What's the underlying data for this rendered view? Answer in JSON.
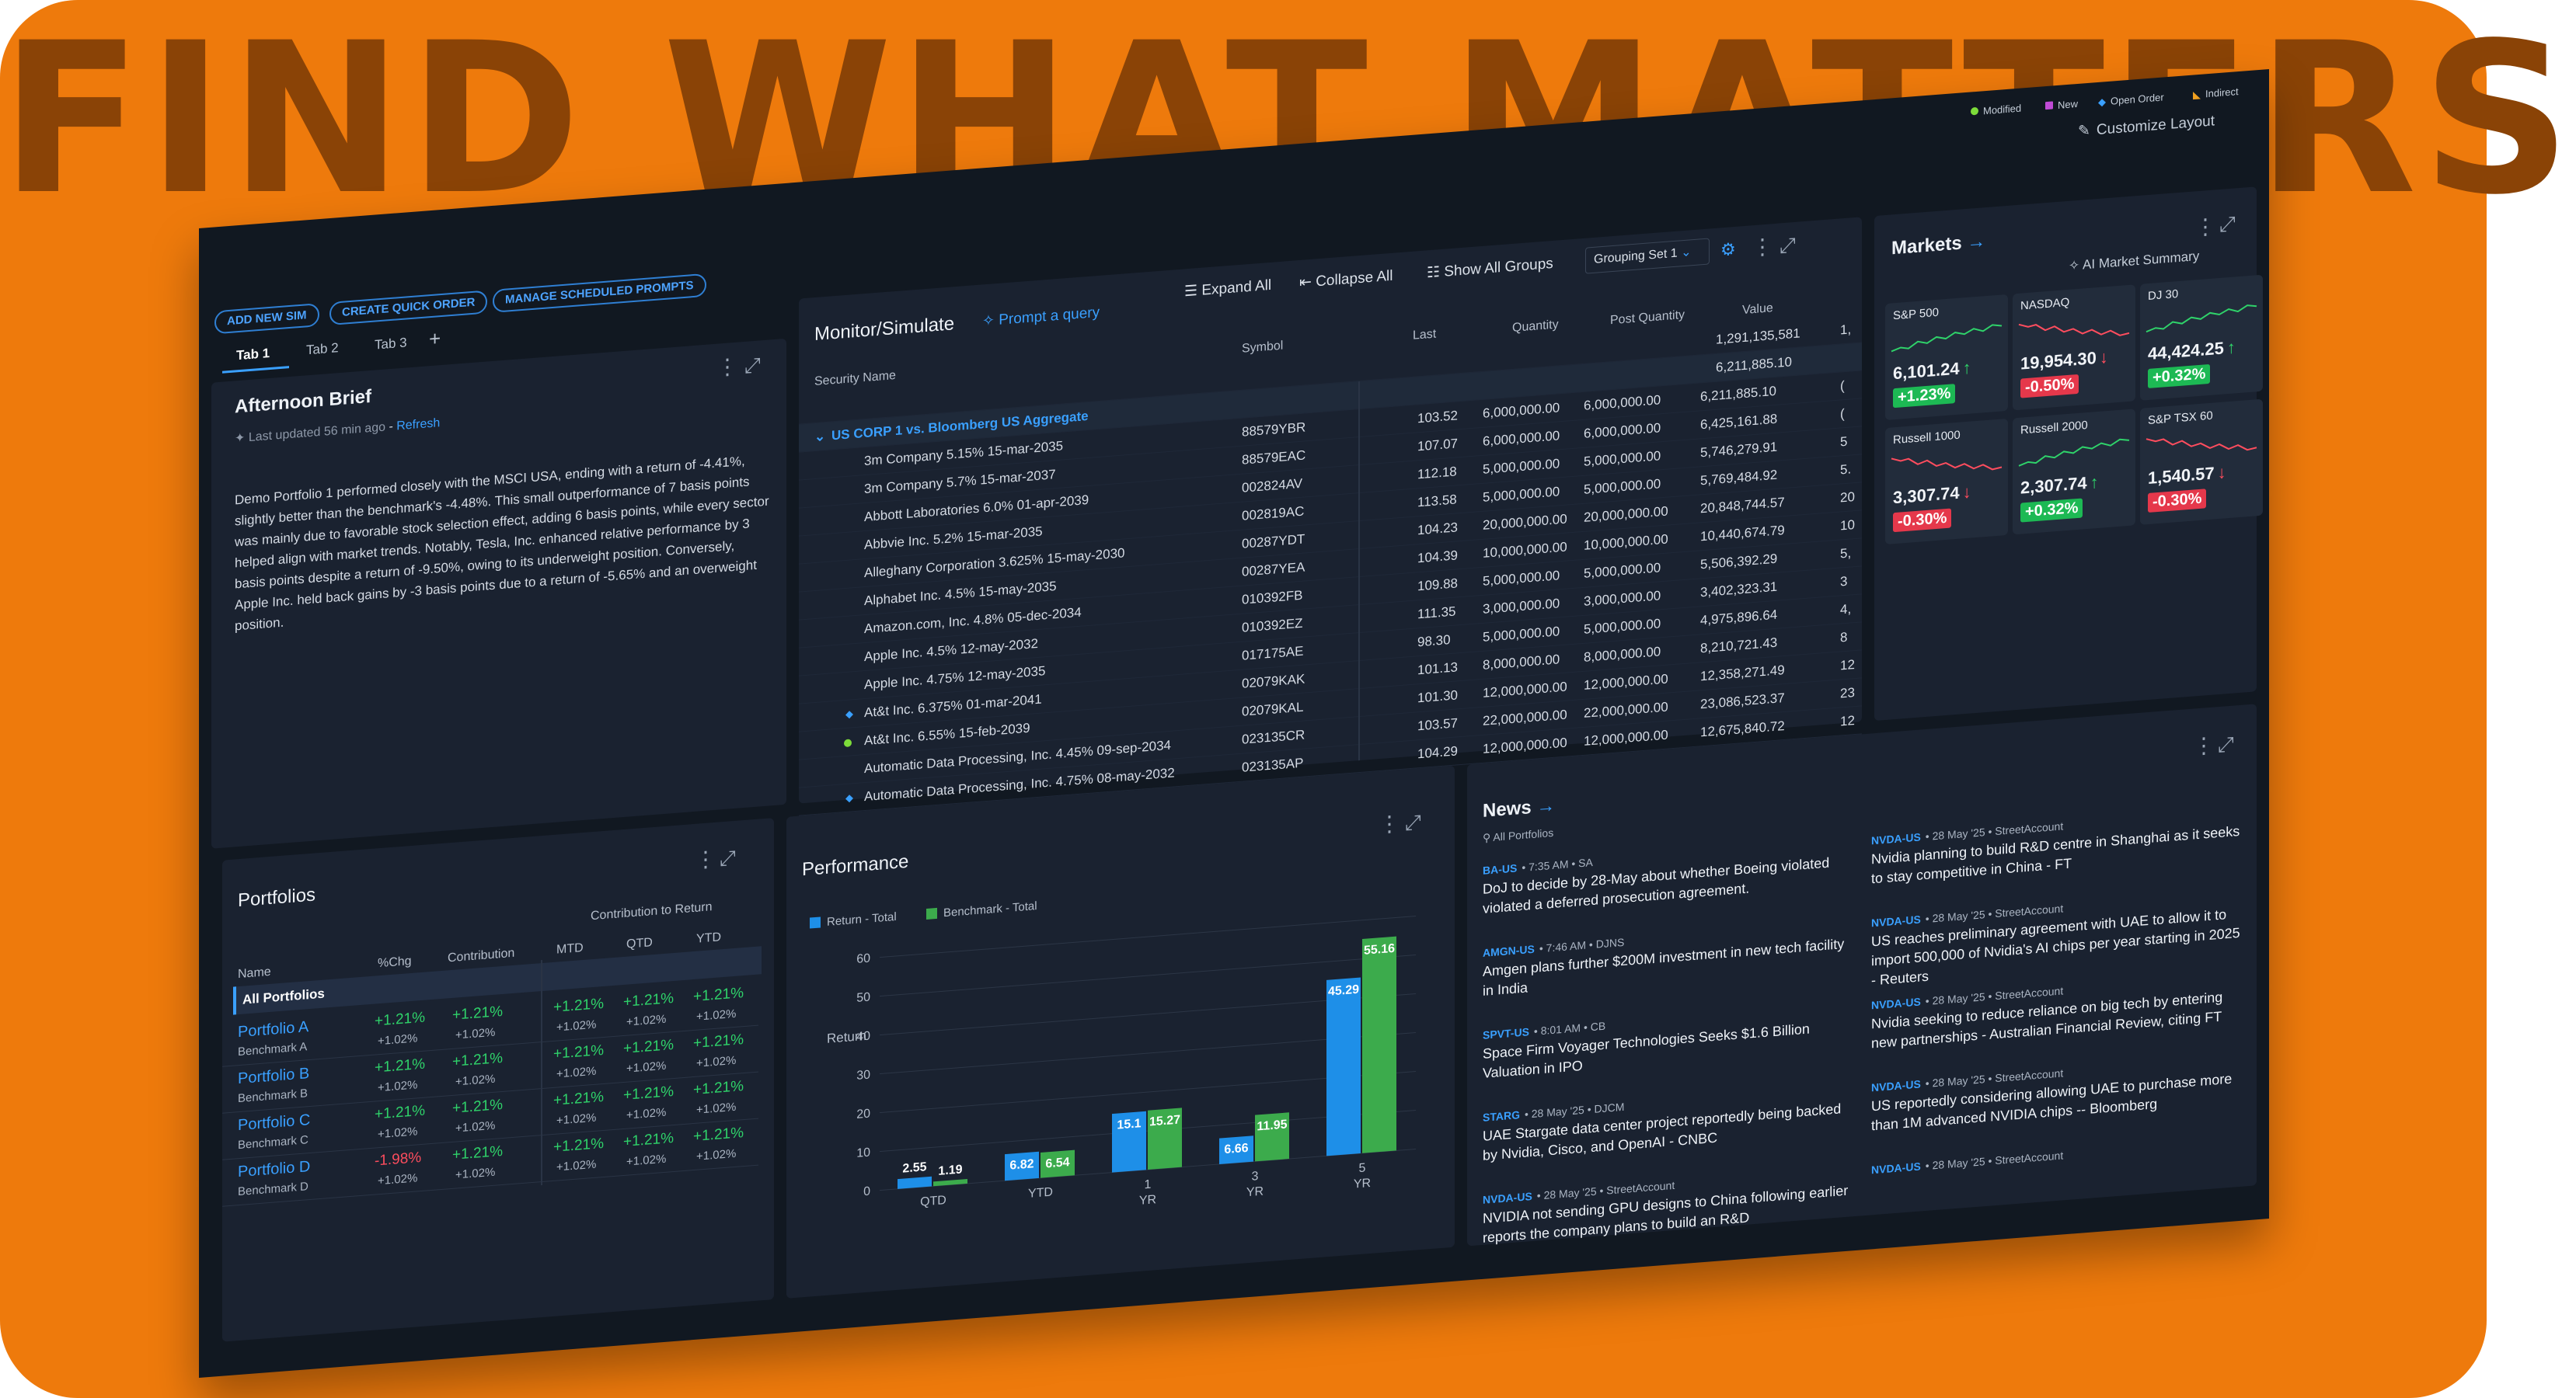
{
  "headline": "FIND WHAT MATTERS",
  "legend_top": [
    {
      "label": "Modified",
      "color": "#7ddc3a",
      "shape": "dot"
    },
    {
      "label": "New",
      "color": "#c04bd6",
      "shape": "square"
    },
    {
      "label": "Open Order",
      "color": "#3aa0ff",
      "shape": "diamond"
    },
    {
      "label": "Indirect",
      "color": "#f0a020",
      "shape": "triangle"
    }
  ],
  "customize_layout": "Customize Layout",
  "toolbar": {
    "add_new_sim": "ADD NEW SIM",
    "create_quick_order": "CREATE QUICK ORDER",
    "manage_scheduled_prompts": "MANAGE SCHEDULED PROMPTS"
  },
  "tabs": [
    "Tab 1",
    "Tab 2",
    "Tab 3"
  ],
  "add_tab": "+",
  "brief": {
    "title": "Afternoon Brief",
    "updated": "Last updated 56 min ago",
    "refresh": "Refresh",
    "text": "Demo Portfolio 1 performed closely with the MSCI USA, ending with a return of -4.41%, slightly better than the benchmark's -4.48%. This small outperformance of 7 basis points was mainly due to favorable stock selection effect, adding 6 basis points, while every sector helped align with market trends. Notably, Tesla, Inc. enhanced relative performance by 3 basis points despite a return of -9.50%, owing to its underweight position. Conversely, Apple Inc. held back gains by -3 basis points due to a return of -5.65% and an overweight position."
  },
  "monitor": {
    "title": "Monitor/Simulate",
    "prompt": "Prompt a query",
    "expand_all": "Expand All",
    "collapse_all": "Collapse All",
    "show_all_groups": "Show All Groups",
    "grouping": "Grouping Set 1",
    "columns": [
      "Security Name",
      "Symbol",
      "Last",
      "Quantity",
      "Post Quantity",
      "Value"
    ],
    "total_value": "1,291,135,581",
    "total_trunc": "1,",
    "group": "US CORP 1 vs. Bloomberg US Aggregate",
    "group_value": "6,211,885.10",
    "rows": [
      {
        "name": "3m Company 5.15% 15-mar-2035",
        "symbol": "88579YBR",
        "last": "103.52",
        "qty": "6,000,000.00",
        "post": "6,000,000.00",
        "value": "6,211,885.10",
        "trunc": "(",
        "marker": ""
      },
      {
        "name": "3m Company 5.7% 15-mar-2037",
        "symbol": "88579EAC",
        "last": "107.07",
        "qty": "6,000,000.00",
        "post": "6,000,000.00",
        "value": "6,425,161.88",
        "trunc": "(",
        "marker": ""
      },
      {
        "name": "Abbott Laboratories 6.0% 01-apr-2039",
        "symbol": "002824AV",
        "last": "112.18",
        "qty": "5,000,000.00",
        "post": "5,000,000.00",
        "value": "5,746,279.91",
        "trunc": "5",
        "marker": ""
      },
      {
        "name": "Abbvie Inc. 5.2% 15-mar-2035",
        "symbol": "002819AC",
        "last": "113.58",
        "qty": "5,000,000.00",
        "post": "5,000,000.00",
        "value": "5,769,484.92",
        "trunc": "5.",
        "marker": ""
      },
      {
        "name": "Alleghany Corporation 3.625% 15-may-2030",
        "symbol": "00287YDT",
        "last": "104.23",
        "qty": "20,000,000.00",
        "post": "20,000,000.00",
        "value": "20,848,744.57",
        "trunc": "20",
        "marker": ""
      },
      {
        "name": "Alphabet Inc. 4.5% 15-may-2035",
        "symbol": "00287YEA",
        "last": "104.39",
        "qty": "10,000,000.00",
        "post": "10,000,000.00",
        "value": "10,440,674.79",
        "trunc": "10",
        "marker": ""
      },
      {
        "name": "Amazon.com, Inc. 4.8% 05-dec-2034",
        "symbol": "010392FB",
        "last": "109.88",
        "qty": "5,000,000.00",
        "post": "5,000,000.00",
        "value": "5,506,392.29",
        "trunc": "5,",
        "marker": ""
      },
      {
        "name": "Apple Inc. 4.5% 12-may-2032",
        "symbol": "010392EZ",
        "last": "111.35",
        "qty": "3,000,000.00",
        "post": "3,000,000.00",
        "value": "3,402,323.31",
        "trunc": "3",
        "marker": ""
      },
      {
        "name": "Apple Inc. 4.75% 12-may-2035",
        "symbol": "017175AE",
        "last": "98.30",
        "qty": "5,000,000.00",
        "post": "5,000,000.00",
        "value": "4,975,896.64",
        "trunc": "4,",
        "marker": ""
      },
      {
        "name": "At&t Inc. 6.375% 01-mar-2041",
        "symbol": "02079KAK",
        "last": "101.13",
        "qty": "8,000,000.00",
        "post": "8,000,000.00",
        "value": "8,210,721.43",
        "trunc": "8",
        "marker": "diamond"
      },
      {
        "name": "At&t Inc. 6.55% 15-feb-2039",
        "symbol": "02079KAL",
        "last": "101.30",
        "qty": "12,000,000.00",
        "post": "12,000,000.00",
        "value": "12,358,271.49",
        "trunc": "12",
        "marker": "dot"
      },
      {
        "name": "Automatic Data Processing, Inc. 4.45% 09-sep-2034",
        "symbol": "023135CR",
        "last": "103.57",
        "qty": "22,000,000.00",
        "post": "22,000,000.00",
        "value": "23,086,523.37",
        "trunc": "23",
        "marker": ""
      },
      {
        "name": "Automatic Data Processing, Inc. 4.75% 08-may-2032",
        "symbol": "023135AP",
        "last": "104.29",
        "qty": "12,000,000.00",
        "post": "12,000,000.00",
        "value": "12,675,840.72",
        "trunc": "12",
        "marker": "diamond"
      }
    ]
  },
  "markets": {
    "title": "Markets",
    "ai_summary": "AI Market Summary",
    "tiles": [
      {
        "name": "S&P 500",
        "value": "6,101.24",
        "change": "+1.23%",
        "dir": "up"
      },
      {
        "name": "NASDAQ",
        "value": "19,954.30",
        "change": "-0.50%",
        "dir": "down"
      },
      {
        "name": "DJ 30",
        "value": "44,424.25",
        "change": "+0.32%",
        "dir": "up"
      },
      {
        "name": "Russell 1000",
        "value": "3,307.74",
        "change": "-0.30%",
        "dir": "down"
      },
      {
        "name": "Russell 2000",
        "value": "2,307.74",
        "change": "+0.32%",
        "dir": "up"
      },
      {
        "name": "S&P TSX 60",
        "value": "1,540.57",
        "change": "-0.30%",
        "dir": "down"
      }
    ]
  },
  "portfolios": {
    "title": "Portfolios",
    "contribution_header": "Contribution to Return",
    "columns": [
      "Name",
      "%Chg",
      "Contribution",
      "MTD",
      "QTD",
      "YTD"
    ],
    "all": "All Portfolios",
    "rows": [
      {
        "name": "Portfolio A",
        "bench": "Benchmark A",
        "chg": "+1.21%",
        "chg_neg": false,
        "chg_b": "+1.02%",
        "contrib": "+1.21%",
        "contrib_b": "+1.02%",
        "mtd": "+1.21%",
        "mtd_b": "+1.02%",
        "qtd": "+1.21%",
        "qtd_b": "+1.02%",
        "ytd": "+1.21%",
        "ytd_b": "+1.02%"
      },
      {
        "name": "Portfolio B",
        "bench": "Benchmark B",
        "chg": "+1.21%",
        "chg_neg": false,
        "chg_b": "+1.02%",
        "contrib": "+1.21%",
        "contrib_b": "+1.02%",
        "mtd": "+1.21%",
        "mtd_b": "+1.02%",
        "qtd": "+1.21%",
        "qtd_b": "+1.02%",
        "ytd": "+1.21%",
        "ytd_b": "+1.02%"
      },
      {
        "name": "Portfolio C",
        "bench": "Benchmark C",
        "chg": "+1.21%",
        "chg_neg": false,
        "chg_b": "+1.02%",
        "contrib": "+1.21%",
        "contrib_b": "+1.02%",
        "mtd": "+1.21%",
        "mtd_b": "+1.02%",
        "qtd": "+1.21%",
        "qtd_b": "+1.02%",
        "ytd": "+1.21%",
        "ytd_b": "+1.02%"
      },
      {
        "name": "Portfolio D",
        "bench": "Benchmark D",
        "chg": "-1.98%",
        "chg_neg": true,
        "chg_b": "+1.02%",
        "contrib": "+1.21%",
        "contrib_b": "+1.02%",
        "mtd": "+1.21%",
        "mtd_b": "+1.02%",
        "qtd": "+1.21%",
        "qtd_b": "+1.02%",
        "ytd": "+1.21%",
        "ytd_b": "+1.02%"
      }
    ]
  },
  "performance": {
    "title": "Performance"
  },
  "chart_data": {
    "type": "bar",
    "categories": [
      "QTD",
      "YTD",
      "1\nYR",
      "3\nYR",
      "5\nYR"
    ],
    "series": [
      {
        "name": "Return - Total",
        "color": "#1e8fe8",
        "values": [
          2.55,
          6.82,
          15.1,
          6.66,
          45.29
        ]
      },
      {
        "name": "Benchmark - Total",
        "color": "#3cab4c",
        "values": [
          1.19,
          6.54,
          15.27,
          11.95,
          55.16
        ]
      }
    ],
    "ylabel": "Return",
    "ylim": [
      0,
      60
    ],
    "yticks": [
      0,
      10,
      20,
      30,
      40,
      50,
      60
    ],
    "legend": "top-left",
    "grid": true
  },
  "news": {
    "title": "News",
    "filter": "All Portfolios",
    "left": [
      {
        "ticker": "BA-US",
        "meta": "• 7:35 AM • SA",
        "headline": "DoJ to decide by 28-May about whether Boeing violated violated a deferred prosecution agreement."
      },
      {
        "ticker": "AMGN-US",
        "meta": "• 7:46 AM • DJNS",
        "headline": "Amgen plans further $200M investment in new tech facility in India"
      },
      {
        "ticker": "SPVT-US",
        "meta": "• 8:01 AM • CB",
        "headline": "Space Firm Voyager Technologies Seeks $1.6 Billion Valuation in IPO"
      },
      {
        "ticker": "STARG",
        "meta": "• 28 May '25 • DJCM",
        "headline": "UAE Stargate data center project reportedly being backed by Nvidia, Cisco, and OpenAI - CNBC"
      },
      {
        "ticker": "NVDA-US",
        "meta": "• 28 May '25 • StreetAccount",
        "headline": "NVIDIA not sending GPU designs to China following earlier reports the company plans to build an R&D"
      }
    ],
    "right": [
      {
        "ticker": "NVDA-US",
        "meta": "• 28 May '25 • StreetAccount",
        "headline": "Nvidia planning to build R&D centre in Shanghai as it seeks to stay competitive in China - FT"
      },
      {
        "ticker": "NVDA-US",
        "meta": "• 28 May '25 • StreetAccount",
        "headline": "US reaches preliminary agreement with UAE to allow it to import 500,000 of Nvidia's AI chips per year starting in 2025 - Reuters"
      },
      {
        "ticker": "NVDA-US",
        "meta": "• 28 May '25 • StreetAccount",
        "headline": "Nvidia seeking to reduce reliance on big tech by entering new partnerships - Australian Financial Review, citing FT"
      },
      {
        "ticker": "NVDA-US",
        "meta": "• 28 May '25 • StreetAccount",
        "headline": "US reportedly considering allowing UAE to purchase more than 1M advanced NVIDIA chips -- Bloomberg"
      },
      {
        "ticker": "NVDA-US",
        "meta": "• 28 May '25 • StreetAccount",
        "headline": ""
      }
    ]
  }
}
